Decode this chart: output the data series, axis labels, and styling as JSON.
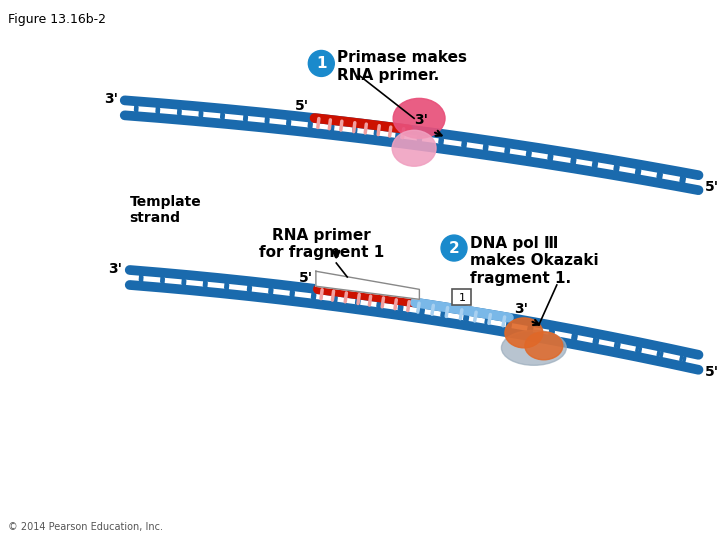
{
  "figure_label": "Figure 13.16b-2",
  "copyright": "© 2014 Pearson Education, Inc.",
  "background_color": "#ffffff",
  "dna_blue": "#1a6aad",
  "primer_red": "#cc1100",
  "primer_tooth_color": "#f0a0a0",
  "new_dna_blue_light": "#7ab8e8",
  "new_dna_tooth_color": "#a8d0f0",
  "primase_pink_dark": "#e8507a",
  "primase_pink_light": "#f0a0c0",
  "dna_pol_orange": "#e06828",
  "dna_pol_gray": "#9aacbc",
  "step1_circle_color": "#1a8acc",
  "step1_text": "Primase makes\nRNA primer.",
  "step2_circle_color": "#1a8acc",
  "step2_text": "DNA pol Ⅲ\nmakes Okazaki\nfragment 1.",
  "template_strand_label": "Template\nstrand",
  "rna_primer_label": "RNA primer\nfor fragment 1"
}
